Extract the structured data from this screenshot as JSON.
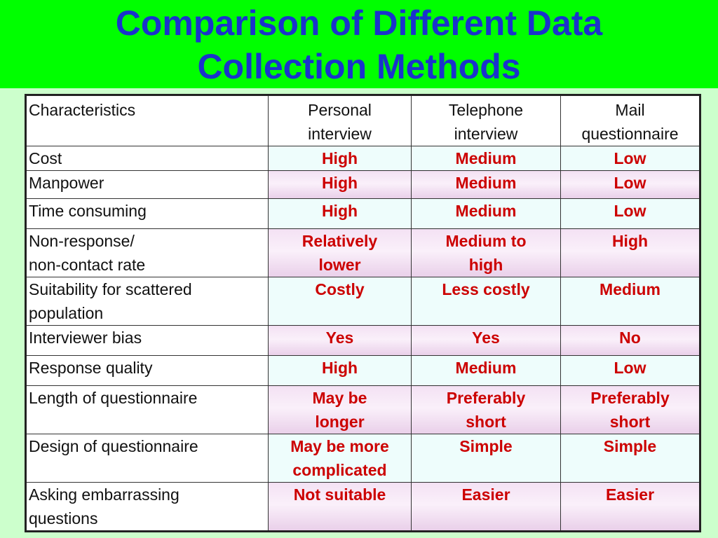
{
  "title": {
    "line1": "Comparison of Different Data",
    "line2": "Collection Methods"
  },
  "table": {
    "headers": {
      "characteristics": "Characteristics",
      "personal": [
        "Personal",
        "interview"
      ],
      "telephone": [
        "Telephone",
        "interview"
      ],
      "mail": [
        "Mail",
        "questionnaire"
      ]
    },
    "rows": [
      {
        "label": [
          "Cost"
        ],
        "personal": [
          "High"
        ],
        "telephone": [
          "Medium"
        ],
        "mail": [
          "Low"
        ]
      },
      {
        "label": [
          "Manpower"
        ],
        "personal": [
          "High"
        ],
        "telephone": [
          "Medium"
        ],
        "mail": [
          "Low"
        ]
      },
      {
        "label": [
          "Time consuming"
        ],
        "personal": [
          "High"
        ],
        "telephone": [
          "Medium"
        ],
        "mail": [
          "Low"
        ]
      },
      {
        "label": [
          "Non-response/",
          "non-contact rate"
        ],
        "personal": [
          "Relatively",
          "lower"
        ],
        "telephone": [
          "Medium to",
          "high"
        ],
        "mail": [
          "High"
        ]
      },
      {
        "label": [
          "Suitability for scattered",
          "population"
        ],
        "personal": [
          "Costly"
        ],
        "telephone": [
          "Less costly"
        ],
        "mail": [
          "Medium"
        ]
      },
      {
        "label": [
          "Interviewer bias"
        ],
        "personal": [
          "Yes"
        ],
        "telephone": [
          "Yes"
        ],
        "mail": [
          "No"
        ]
      },
      {
        "label": [
          "Response quality"
        ],
        "personal": [
          "High"
        ],
        "telephone": [
          "Medium"
        ],
        "mail": [
          "Low"
        ]
      },
      {
        "label": [
          "Length of questionnaire"
        ],
        "personal": [
          "May be",
          "longer"
        ],
        "telephone": [
          "Preferably",
          "short"
        ],
        "mail": [
          "Preferably",
          "short"
        ]
      },
      {
        "label": [
          "Design of questionnaire"
        ],
        "personal": [
          "May be more",
          "complicated"
        ],
        "telephone": [
          "Simple"
        ],
        "mail": [
          "Simple"
        ]
      },
      {
        "label": [
          "Asking embarrassing",
          "questions"
        ],
        "personal": [
          "Not suitable"
        ],
        "telephone": [
          "Easier"
        ],
        "mail": [
          "Easier"
        ]
      }
    ]
  },
  "colors": {
    "title_bar_background": "#00ff00",
    "page_background": "#ccffcc",
    "title_text": "#1a33cc",
    "value_text": "#cc0000",
    "odd_row_fill": "#eefdfc",
    "even_row_fill": "#f4e2f4"
  }
}
